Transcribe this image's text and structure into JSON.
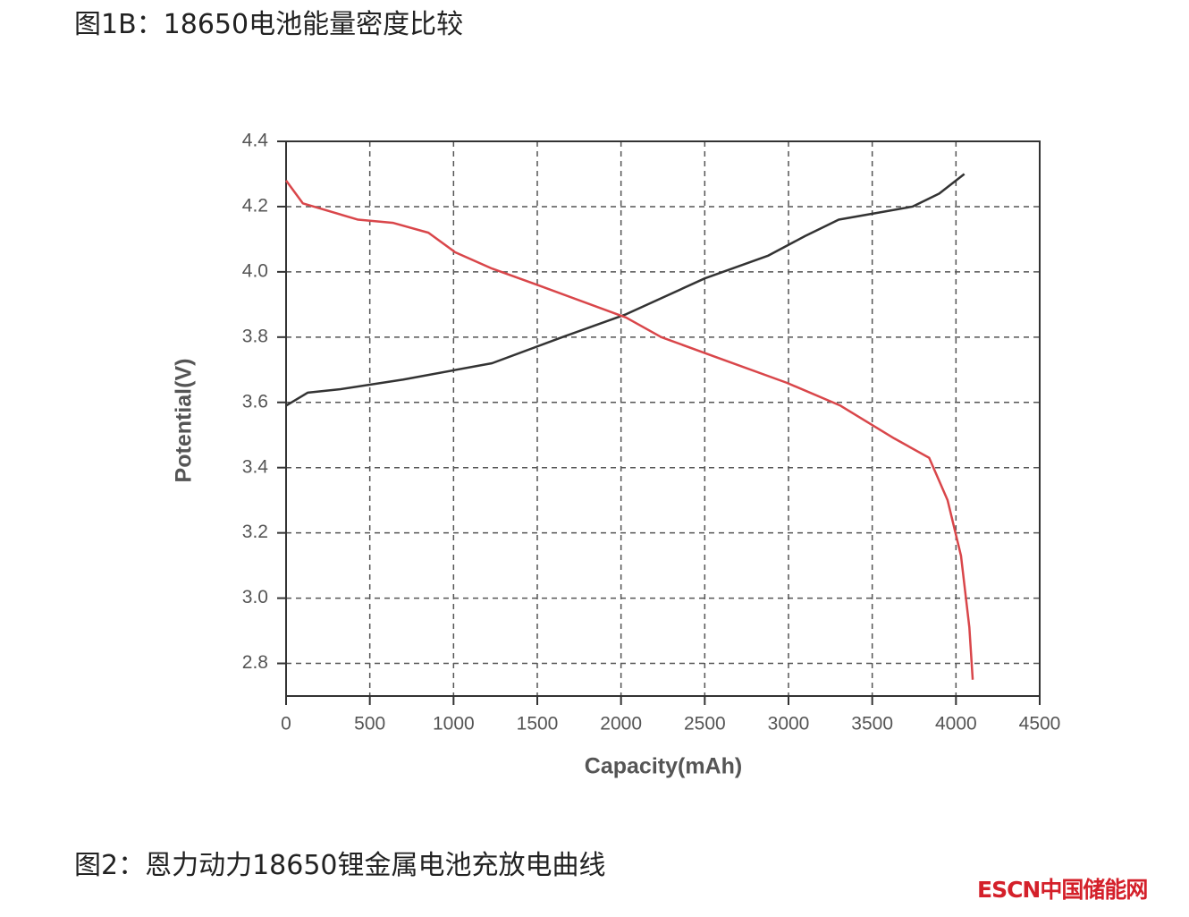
{
  "header": {
    "title": "图1B：18650电池能量密度比较"
  },
  "chart_data": {
    "type": "line",
    "x_label": "Capacity(mAh)",
    "y_label": "Potential(V)",
    "xlim": [
      0,
      4500
    ],
    "ylim": [
      2.7,
      4.4
    ],
    "xticks": [
      0,
      500,
      1000,
      1500,
      2000,
      2500,
      3000,
      3500,
      4000,
      4500
    ],
    "yticks": [
      2.8,
      {
        "value": 3,
        "label": "3.0"
      },
      3.2,
      3.4,
      3.6,
      3.8,
      {
        "value": 4,
        "label": "4.0"
      },
      4.2,
      4.4
    ],
    "grid": true,
    "series": [
      {
        "color": "#333333",
        "x": [
          0,
          130,
          320,
          700,
          1230,
          1650,
          2030,
          2500,
          2880,
          3100,
          3300,
          3520,
          3740,
          3900,
          4050
        ],
        "values": [
          3.59,
          3.63,
          3.64,
          3.67,
          3.72,
          3.8,
          3.87,
          3.98,
          4.05,
          4.11,
          4.16,
          4.18,
          4.2,
          4.24,
          4.3
        ]
      },
      {
        "color": "#d9464a",
        "x": [
          0,
          100,
          430,
          640,
          850,
          1010,
          1230,
          1500,
          2030,
          2240,
          2560,
          2990,
          3310,
          3630,
          3840,
          3950,
          4030,
          4080,
          4100
        ],
        "values": [
          4.28,
          4.21,
          4.16,
          4.15,
          4.12,
          4.06,
          4.01,
          3.96,
          3.86,
          3.8,
          3.74,
          3.66,
          3.59,
          3.49,
          3.43,
          3.3,
          3.13,
          2.91,
          2.75
        ]
      }
    ]
  },
  "caption": {
    "text": "图2：恩力动力18650锂金属电池充放电曲线"
  },
  "watermark": {
    "text": "ESCN中国储能网"
  }
}
